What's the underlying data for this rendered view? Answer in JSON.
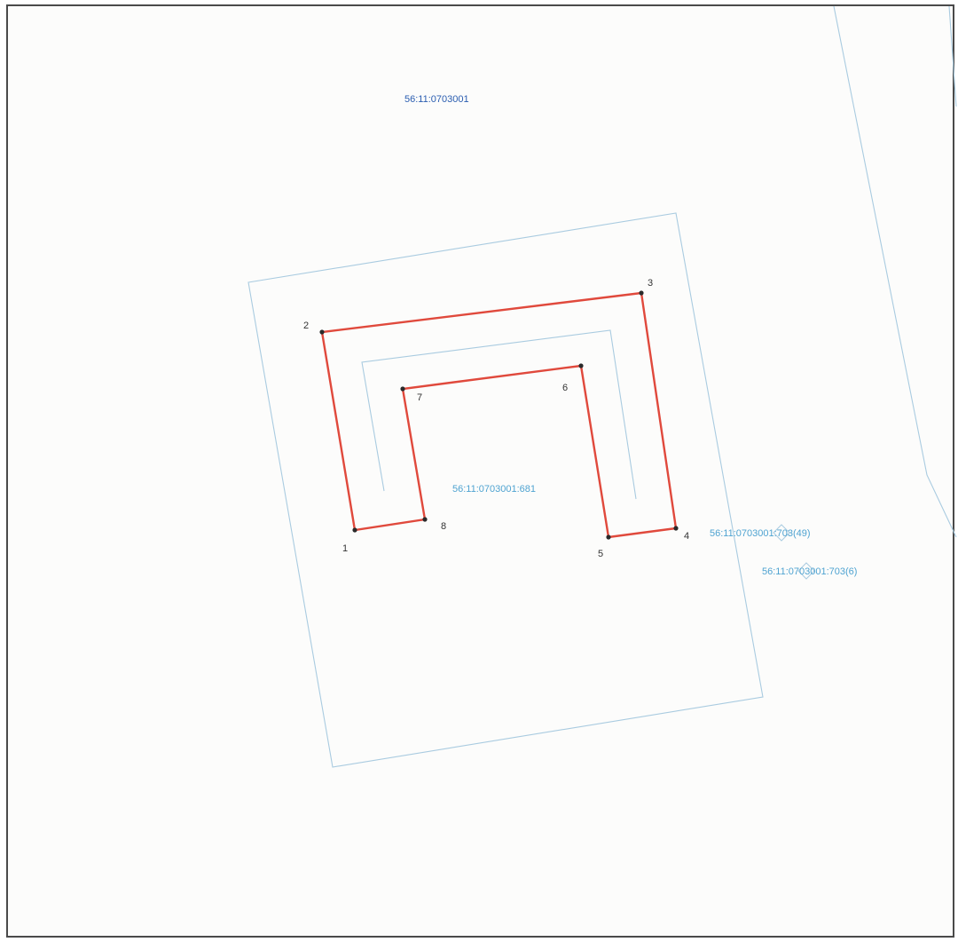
{
  "labels": {
    "quarter": "56:11:0703001",
    "parcel_main": "56:11:0703001:681",
    "parcel_49": "56:11:0703001:703(49)",
    "parcel_6": "56:11:0703001:703(6)"
  },
  "points": [
    {
      "n": "1"
    },
    {
      "n": "2"
    },
    {
      "n": "3"
    },
    {
      "n": "4"
    },
    {
      "n": "5"
    },
    {
      "n": "6"
    },
    {
      "n": "7"
    },
    {
      "n": "8"
    }
  ],
  "colors": {
    "building_contour": "#e0493c",
    "parcel_boundary": "#a9cbe0",
    "quarter_label": "#2a5db0",
    "parcel_label": "#4fa3d1",
    "vertex": "#2a2a2a",
    "frame": "#4a4a4a"
  }
}
